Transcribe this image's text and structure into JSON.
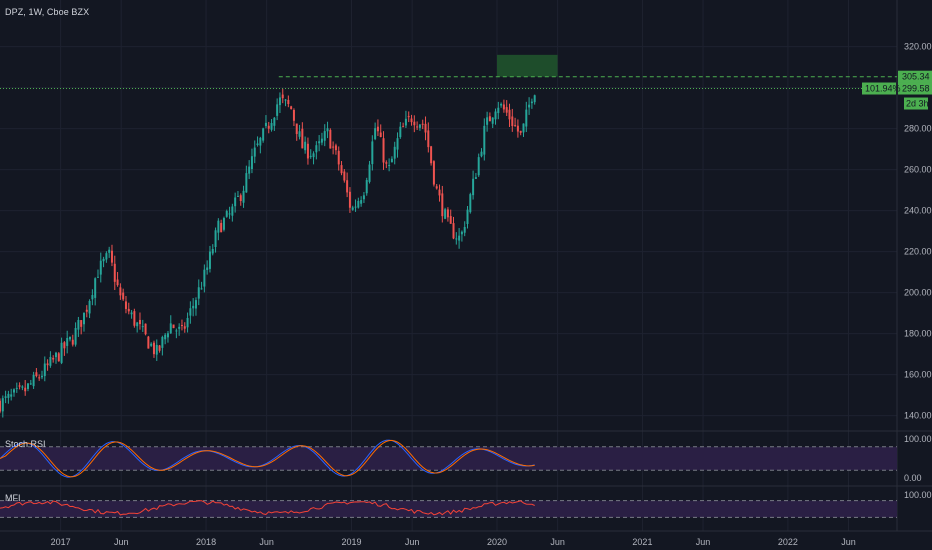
{
  "header": {
    "title": "DPZ, 1W, Cboe BZX"
  },
  "colors": {
    "background": "#131722",
    "up": "#26a69a",
    "down": "#ef5350",
    "grid": "#1e2230",
    "target_zone": "#1e4d2b",
    "badge_green": "#4caf50",
    "stoch_k": "#2962ff",
    "stoch_d": "#ff6d00",
    "mfi": "#f44336",
    "oscillator_band": "#2a1f44"
  },
  "chart_data": {
    "type": "candlestick",
    "symbol": "DPZ",
    "interval": "1W",
    "exchange": "Cboe BZX",
    "y_axis": {
      "ticks": [
        140,
        160,
        180,
        200,
        220,
        240,
        260,
        280,
        300,
        320
      ],
      "tick_labels": [
        "140.00",
        "160.00",
        "180.00",
        "200.00",
        "220.00",
        "240.00",
        "260.00",
        "280.00",
        "",
        "320.00"
      ],
      "ylim": [
        133,
        333
      ]
    },
    "x_axis": {
      "ticks": [
        {
          "date": "2017-01",
          "label": "2017"
        },
        {
          "date": "2017-06",
          "label": "Jun"
        },
        {
          "date": "2018-01",
          "label": "2018"
        },
        {
          "date": "2018-06",
          "label": "Jun"
        },
        {
          "date": "2019-01",
          "label": "2019"
        },
        {
          "date": "2019-06",
          "label": "Jun"
        },
        {
          "date": "2020-01",
          "label": "2020"
        },
        {
          "date": "2020-06",
          "label": "Jun"
        },
        {
          "date": "2021-01",
          "label": "2021"
        },
        {
          "date": "2021-06",
          "label": "Jun"
        },
        {
          "date": "2022-01",
          "label": "2022"
        },
        {
          "date": "2022-06",
          "label": "Jun"
        }
      ],
      "xlim": [
        "2016-08",
        "2022-10"
      ]
    },
    "anchors": [
      [
        "2016-08",
        146
      ],
      [
        "2016-10",
        152
      ],
      [
        "2016-12",
        164
      ],
      [
        "2017-02",
        178
      ],
      [
        "2017-03",
        190
      ],
      [
        "2017-04",
        210
      ],
      [
        "2017-05",
        218
      ],
      [
        "2017-06",
        196
      ],
      [
        "2017-08",
        178
      ],
      [
        "2017-09",
        170
      ],
      [
        "2017-10",
        185
      ],
      [
        "2017-11",
        180
      ],
      [
        "2018-01",
        210
      ],
      [
        "2018-02",
        232
      ],
      [
        "2018-03",
        238
      ],
      [
        "2018-04",
        250
      ],
      [
        "2018-05",
        268
      ],
      [
        "2018-06",
        280
      ],
      [
        "2018-07",
        294
      ],
      [
        "2018-08",
        290
      ],
      [
        "2018-09",
        270
      ],
      [
        "2018-10",
        268
      ],
      [
        "2018-11",
        278
      ],
      [
        "2018-12",
        262
      ],
      [
        "2019-01",
        240
      ],
      [
        "2019-02",
        250
      ],
      [
        "2019-03",
        282
      ],
      [
        "2019-04",
        258
      ],
      [
        "2019-05",
        278
      ],
      [
        "2019-06",
        286
      ],
      [
        "2019-07",
        282
      ],
      [
        "2019-08",
        250
      ],
      [
        "2019-09",
        232
      ],
      [
        "2019-10",
        226
      ],
      [
        "2019-11",
        252
      ],
      [
        "2019-12",
        280
      ],
      [
        "2020-01",
        293
      ],
      [
        "2020-02",
        286
      ],
      [
        "2020-03",
        276
      ],
      [
        "2020-04",
        299.58
      ]
    ],
    "price_levels": [
      {
        "label": "305.34",
        "value": 305.34,
        "style": "dashed",
        "color": "#4caf50"
      },
      {
        "label": "299.58",
        "value": 299.58,
        "style": "dotted",
        "color": "#4caf50"
      }
    ],
    "badges": [
      {
        "label": "101.94%"
      },
      {
        "label": "2d 3h"
      }
    ],
    "target_zone": {
      "from": "2020-01",
      "to": "2020-06",
      "low": 305.34,
      "high": 316
    }
  },
  "indicators": {
    "stoch_rsi": {
      "name": "Stoch RSI",
      "tick_labels": [
        "100.00",
        "0.00"
      ],
      "ylim": [
        0,
        100
      ],
      "bands": [
        80,
        20
      ]
    },
    "mfi": {
      "name": "MFI",
      "tick_labels": [
        "100.00"
      ],
      "ylim": [
        0,
        100
      ],
      "bands": [
        80,
        20
      ]
    }
  }
}
